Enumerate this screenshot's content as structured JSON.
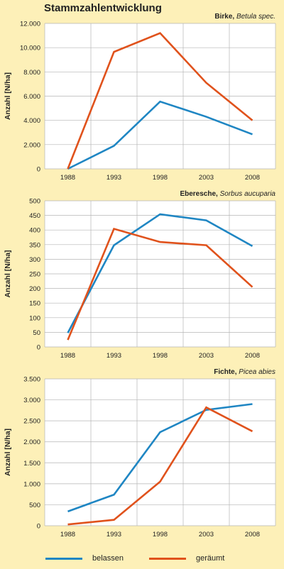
{
  "title": "Stammzahlentwicklung",
  "legend": [
    {
      "name": "belassen",
      "color": "#1f86c3"
    },
    {
      "name": "geräumt",
      "color": "#e0521c"
    }
  ],
  "chart_data": [
    {
      "type": "line",
      "species_common": "Birke,",
      "species_latin": "Betula spec.",
      "ylabel": "Anzahl [N/ha]",
      "x": [
        "1988",
        "1993",
        "1998",
        "2003",
        "2008"
      ],
      "ylim": [
        0,
        12000
      ],
      "yticks": [
        0,
        2000,
        4000,
        6000,
        8000,
        10000,
        12000
      ],
      "ytick_labels": [
        "0",
        "2.000",
        "4.000",
        "6.000",
        "8.000",
        "10.000",
        "12.000"
      ],
      "grid": true,
      "series": [
        {
          "name": "belassen",
          "color": "#1f86c3",
          "values": [
            0,
            1900,
            5550,
            4300,
            2850
          ]
        },
        {
          "name": "geräumt",
          "color": "#e0521c",
          "values": [
            0,
            9650,
            11200,
            7100,
            4000
          ]
        }
      ]
    },
    {
      "type": "line",
      "species_common": "Eberesche,",
      "species_latin": "Sorbus aucuparia",
      "ylabel": "Anzahl [N/ha]",
      "x": [
        "1988",
        "1993",
        "1998",
        "2003",
        "2008"
      ],
      "ylim": [
        0,
        500
      ],
      "yticks": [
        0,
        50,
        100,
        150,
        200,
        250,
        300,
        350,
        400,
        450,
        500
      ],
      "ytick_labels": [
        "0",
        "50",
        "100",
        "150",
        "200",
        "250",
        "300",
        "350",
        "400",
        "450",
        "500"
      ],
      "grid": true,
      "series": [
        {
          "name": "belassen",
          "color": "#1f86c3",
          "values": [
            48,
            348,
            454,
            433,
            345
          ]
        },
        {
          "name": "geräumt",
          "color": "#e0521c",
          "values": [
            24,
            404,
            359,
            348,
            205
          ]
        }
      ]
    },
    {
      "type": "line",
      "species_common": "Fichte,",
      "species_latin": "Picea abies",
      "ylabel": "Anzahl [N/ha]",
      "x": [
        "1988",
        "1993",
        "1998",
        "2003",
        "2008"
      ],
      "ylim": [
        0,
        3500
      ],
      "yticks": [
        0,
        500,
        1000,
        1500,
        2000,
        2500,
        3000,
        3500
      ],
      "ytick_labels": [
        "0",
        "500",
        "1.000",
        "1.500",
        "2.000",
        "2.500",
        "3.000",
        "3.500"
      ],
      "grid": true,
      "series": [
        {
          "name": "belassen",
          "color": "#1f86c3",
          "values": [
            340,
            740,
            2230,
            2760,
            2900
          ]
        },
        {
          "name": "geräumt",
          "color": "#e0521c",
          "values": [
            30,
            140,
            1050,
            2820,
            2250
          ]
        }
      ]
    }
  ]
}
